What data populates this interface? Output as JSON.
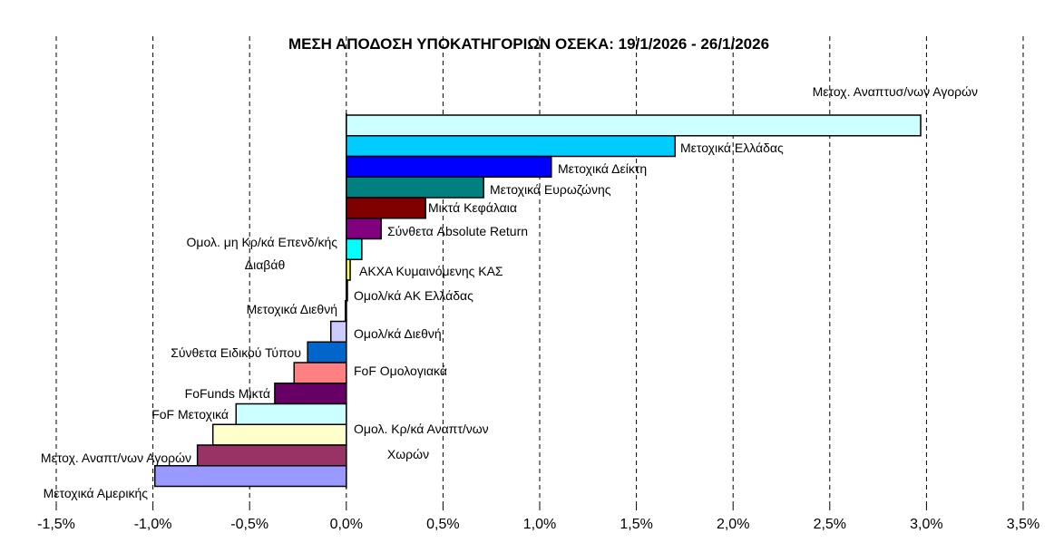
{
  "chart_data": {
    "type": "bar",
    "orientation": "horizontal",
    "title": "ΜΕΣΗ ΑΠΟΔΟΣΗ ΥΠΟΚΑΤΗΓΟΡΙΩΝ ΟΣΕΚΑ: 19/1/2026 - 26/1/2026",
    "xlim": [
      -1.5,
      3.5
    ],
    "x_ticks": [
      "-1,5%",
      "-1,0%",
      "-0,5%",
      "0,0%",
      "0,5%",
      "1,0%",
      "1,5%",
      "2,0%",
      "2,5%",
      "3,0%",
      "3,5%"
    ],
    "grid": "vertical dashed",
    "legend": "none",
    "categories": [
      {
        "label": "Μετοχ. Αναπτυσ/νων Αγορών",
        "value": 2.97,
        "color": "#ccffff"
      },
      {
        "label": "Μετοχικά Ελλάδας",
        "value": 1.7,
        "color": "#00ccff"
      },
      {
        "label": "Μετοχικά Δείκτη",
        "value": 1.06,
        "color": "#0000ff"
      },
      {
        "label": "Μετοχικά Ευρωζώνης",
        "value": 0.71,
        "color": "#008080"
      },
      {
        "label": "Μικτά Κεφάλαια",
        "value": 0.41,
        "color": "#800000"
      },
      {
        "label": "Σύνθετα Absolute Return",
        "value": 0.18,
        "color": "#800080"
      },
      {
        "label": "Ομολ. μη Κρ/κά Επενδ/κής Διαβάθ",
        "value": 0.08,
        "color": "#00ffff"
      },
      {
        "label": "ΑΚΧΑ Κυμαινόμενης ΚΑΣ",
        "value": 0.02,
        "color": "#ffff66"
      },
      {
        "label": "Ομολ/κά ΑΚ Ελλάδας",
        "value": 0.005,
        "color": "#000080"
      },
      {
        "label": "Μετοχικά Διεθνή",
        "value": -0.005,
        "color": "#000080"
      },
      {
        "label": "Ομολ/κά Διεθνή",
        "value": -0.08,
        "color": "#ccccff"
      },
      {
        "label": "Σύνθετα Ειδικού Τύπου",
        "value": -0.2,
        "color": "#0066cc"
      },
      {
        "label": "FoF Ομολογιακά",
        "value": -0.27,
        "color": "#ff8080"
      },
      {
        "label": "FoFunds Μικτά",
        "value": -0.37,
        "color": "#660066"
      },
      {
        "label": "FoF Μετοχικά",
        "value": -0.57,
        "color": "#ccffff"
      },
      {
        "label": "Ομολ. Κρ/κά Αναπτ/νων Χωρών",
        "value": -0.69,
        "color": "#ffffcc"
      },
      {
        "label": "Μετοχ. Αναπτ/νων Αγορών",
        "value": -0.77,
        "color": "#993366"
      },
      {
        "label": "Μετοχικά Αμερικής",
        "value": -0.99,
        "color": "#9999ff"
      }
    ]
  }
}
